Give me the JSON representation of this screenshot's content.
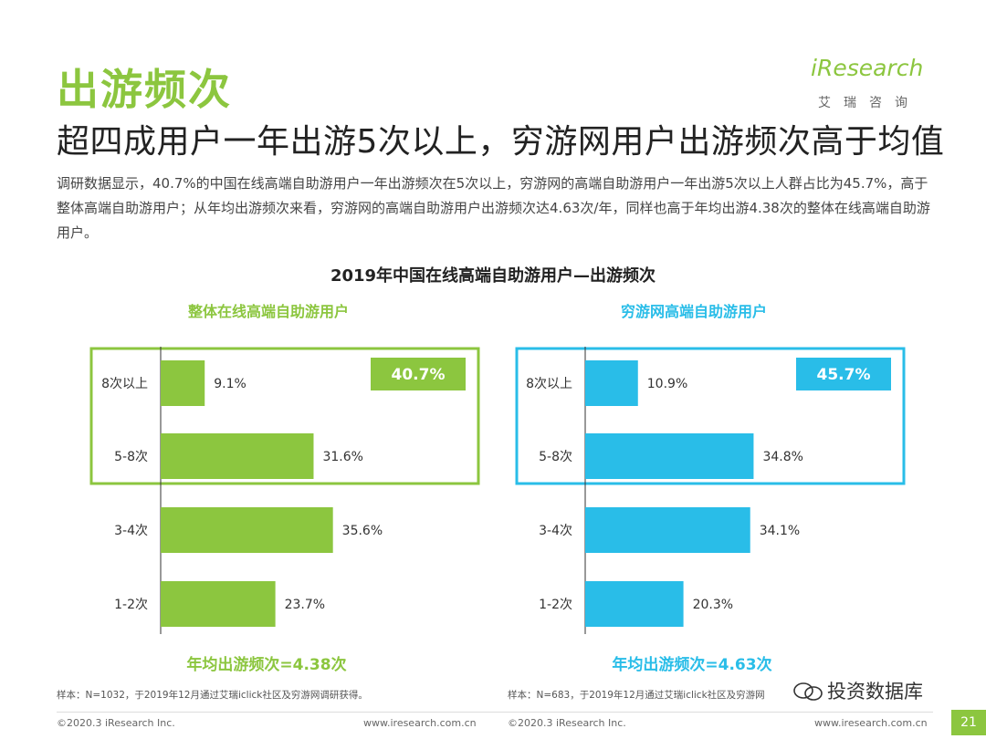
{
  "header": {
    "title": "出游频次",
    "subtitle": "超四成用户一年出游5次以上，穷游网用户出游频次高于均值",
    "intro": "调研数据显示，40.7%的中国在线高端自助游用户一年出游频次在5次以上，穷游网的高端自助游用户一年出游5次以上人群占比为45.7%，高于整体高端自助游用户；从年均出游频次来看，穷游网的高端自助游用户出游频次达4.63次/年，同样也高于年均出游4.38次的整体在线高端自助游用户。"
  },
  "logo": {
    "text": "iResearch",
    "sub": "艾瑞咨询"
  },
  "chart_title": "2019年中国在线高端自助游用户—出游频次",
  "colors": {
    "green": "#8CC63F",
    "blue": "#29BDE8",
    "text": "#333333"
  },
  "chart_data": [
    {
      "type": "bar",
      "orientation": "horizontal",
      "title": "整体在线高端自助游用户",
      "categories": [
        "8次以上",
        "5-8次",
        "3-4次",
        "1-2次"
      ],
      "values": [
        9.1,
        31.6,
        35.6,
        23.7
      ],
      "value_labels": [
        "9.1%",
        "31.6%",
        "35.6%",
        "23.7%"
      ],
      "highlight_label": "40.7%",
      "footer": "年均出游频次=4.38次",
      "color": "#8CC63F",
      "xlim": [
        0,
        40
      ]
    },
    {
      "type": "bar",
      "orientation": "horizontal",
      "title": "穷游网高端自助游用户",
      "categories": [
        "8次以上",
        "5-8次",
        "3-4次",
        "1-2次"
      ],
      "values": [
        10.9,
        34.8,
        34.1,
        20.3
      ],
      "value_labels": [
        "10.9%",
        "34.8%",
        "34.1%",
        "20.3%"
      ],
      "highlight_label": "45.7%",
      "footer": "年均出游频次=4.63次",
      "color": "#29BDE8",
      "xlim": [
        0,
        40
      ]
    }
  ],
  "footnotes": {
    "left": "样本：N=1032，于2019年12月通过艾瑞iclick社区及穷游网调研获得。",
    "right": "样本：N=683，于2019年12月通过艾瑞iclick社区及穷游网"
  },
  "copyright": {
    "left": "©2020.3 iResearch Inc.",
    "right": "©2020.3 iResearch Inc."
  },
  "site": {
    "left": "www.iresearch.com.cn",
    "right": "www.iresearch.com.cn"
  },
  "page_number": "21",
  "watermark": "投资数据库"
}
